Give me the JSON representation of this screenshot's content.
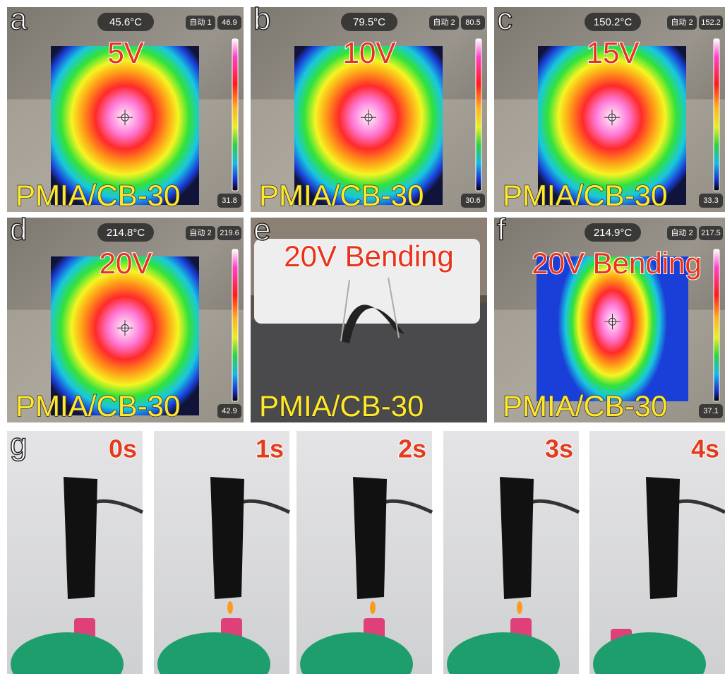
{
  "panels": [
    {
      "letter": "a",
      "temperature": "45.6°C",
      "mode": "自动 1",
      "max": "46.9",
      "min": "31.8",
      "label": "5V",
      "sample": "PMIA/CB-30"
    },
    {
      "letter": "b",
      "temperature": "79.5°C",
      "mode": "自动 2",
      "max": "80.5",
      "min": "30.6",
      "label": "10V",
      "sample": "PMIA/CB-30"
    },
    {
      "letter": "c",
      "temperature": "150.2°C",
      "mode": "自动 2",
      "max": "152.2",
      "min": "33.3",
      "label": "15V",
      "sample": "PMIA/CB-30"
    },
    {
      "letter": "d",
      "temperature": "214.8°C",
      "mode": "自动 2",
      "max": "219.6",
      "min": "42.9",
      "label": "20V",
      "sample": "PMIA/CB-30"
    },
    {
      "letter": "e",
      "label": "20V Bending",
      "sample": "PMIA/CB-30"
    },
    {
      "letter": "f",
      "temperature": "214.9°C",
      "mode": "自动 2",
      "max": "217.5",
      "min": "37.1",
      "label": "20V Bending",
      "sample": "PMIA/CB-30"
    }
  ],
  "burn_test": {
    "letter": "g",
    "frames": [
      "0s",
      "1s",
      "2s",
      "3s",
      "4s"
    ]
  }
}
